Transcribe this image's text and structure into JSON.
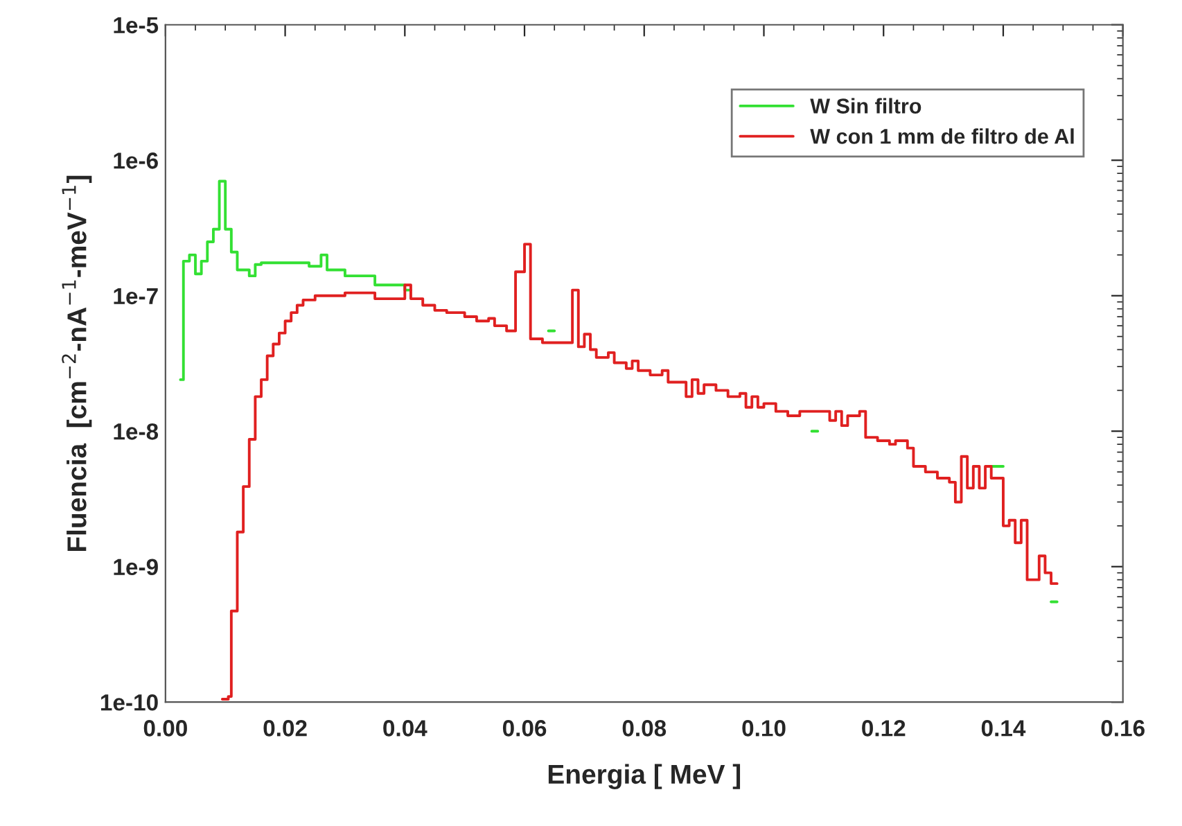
{
  "chart_data": {
    "type": "step",
    "xlabel": "Energia [ MeV ]",
    "ylabel": "Fluencia  [cm$^{−2}$-nA$^{−1}$-meV$^{−1}$]",
    "log": "y",
    "grid": false,
    "legend": "top right",
    "xlim": [
      0.0,
      0.16
    ],
    "xticks": [
      {
        "value": 0.0,
        "label": "0.00"
      },
      {
        "value": 0.02,
        "label": "0.02"
      },
      {
        "value": 0.04,
        "label": "0.04"
      },
      {
        "value": 0.06,
        "label": "0.06"
      },
      {
        "value": 0.08,
        "label": "0.08"
      },
      {
        "value": 0.1,
        "label": "0.10"
      },
      {
        "value": 0.12,
        "label": "0.12"
      },
      {
        "value": 0.14,
        "label": "0.14"
      },
      {
        "value": 0.16,
        "label": "0.16"
      }
    ],
    "ylim": [
      1e-10,
      1e-05
    ],
    "yticks": [
      {
        "value": 1e-10,
        "label": "1e-10"
      },
      {
        "value": 1e-09,
        "label": "1e-9"
      },
      {
        "value": 1e-08,
        "label": "1e-8"
      },
      {
        "value": 1e-07,
        "label": "1e-7"
      },
      {
        "value": 1e-06,
        "label": "1e-6"
      },
      {
        "value": 1e-05,
        "label": "1e-5"
      }
    ],
    "series": [
      {
        "name": "W Sin filtro",
        "color": "#33e033",
        "x": [
          0.0025,
          0.003,
          0.004,
          0.005,
          0.006,
          0.007,
          0.008,
          0.009,
          0.01,
          0.011,
          0.012,
          0.014,
          0.015,
          0.016,
          0.024,
          0.026,
          0.027,
          0.03,
          0.035,
          0.04,
          0.041,
          0.043,
          0.045,
          0.047,
          0.05,
          0.052,
          0.054,
          0.055,
          0.057,
          0.0585,
          0.06,
          0.061,
          0.063,
          0.064,
          0.065,
          0.068,
          0.069,
          0.07,
          0.071,
          0.072,
          0.074,
          0.075,
          0.077,
          0.078,
          0.079,
          0.081,
          0.083,
          0.084,
          0.086,
          0.087,
          0.088,
          0.089,
          0.09,
          0.092,
          0.094,
          0.096,
          0.097,
          0.098,
          0.099,
          0.1,
          0.102,
          0.104,
          0.106,
          0.108,
          0.109,
          0.111,
          0.112,
          0.113,
          0.114,
          0.116,
          0.117,
          0.119,
          0.121,
          0.122,
          0.124,
          0.125,
          0.127,
          0.129,
          0.131,
          0.132,
          0.133,
          0.134,
          0.135,
          0.136,
          0.137,
          0.138,
          0.14,
          0.141,
          0.142,
          0.143,
          0.144,
          0.146,
          0.147,
          0.148,
          0.149
        ],
        "values": [
          2.4e-08,
          1.8e-07,
          2e-07,
          1.45e-07,
          1.8e-07,
          2.5e-07,
          3.1e-07,
          7e-07,
          3.1e-07,
          2.1e-07,
          1.55e-07,
          1.4e-07,
          1.7e-07,
          1.75e-07,
          1.65e-07,
          2e-07,
          1.55e-07,
          1.4e-07,
          1.2e-07,
          1.1e-07,
          null,
          null,
          null,
          null,
          null,
          null,
          null,
          null,
          null,
          null,
          null,
          null,
          null,
          5.5e-08,
          null,
          null,
          null,
          null,
          null,
          null,
          null,
          null,
          null,
          null,
          null,
          null,
          null,
          null,
          null,
          null,
          null,
          null,
          null,
          null,
          null,
          null,
          null,
          null,
          null,
          null,
          null,
          null,
          null,
          1e-08,
          null,
          null,
          null,
          null,
          null,
          null,
          null,
          null,
          null,
          null,
          null,
          null,
          null,
          null,
          null,
          null,
          null,
          null,
          null,
          null,
          null,
          5.5e-09,
          null,
          null,
          null,
          null,
          null,
          null,
          null,
          5.5e-10,
          5.5e-10
        ]
      },
      {
        "name": "W con 1 mm de filtro de Al",
        "color": "#e02020",
        "x": [
          0.0095,
          0.0105,
          0.011,
          0.012,
          0.013,
          0.014,
          0.015,
          0.016,
          0.017,
          0.018,
          0.019,
          0.02,
          0.021,
          0.022,
          0.023,
          0.025,
          0.03,
          0.035,
          0.04,
          0.041,
          0.043,
          0.045,
          0.047,
          0.05,
          0.052,
          0.054,
          0.055,
          0.057,
          0.0585,
          0.06,
          0.061,
          0.063,
          0.068,
          0.069,
          0.07,
          0.071,
          0.072,
          0.074,
          0.075,
          0.077,
          0.078,
          0.079,
          0.081,
          0.083,
          0.084,
          0.086,
          0.087,
          0.088,
          0.089,
          0.09,
          0.092,
          0.094,
          0.096,
          0.097,
          0.098,
          0.099,
          0.1,
          0.102,
          0.104,
          0.106,
          0.111,
          0.112,
          0.113,
          0.114,
          0.116,
          0.117,
          0.119,
          0.121,
          0.122,
          0.124,
          0.125,
          0.127,
          0.129,
          0.131,
          0.132,
          0.133,
          0.134,
          0.135,
          0.136,
          0.137,
          0.138,
          0.14,
          0.141,
          0.142,
          0.143,
          0.144,
          0.146,
          0.147,
          0.148,
          0.149
        ],
        "values": [
          1.05e-10,
          1.1e-10,
          4.7e-10,
          1.8e-09,
          3.9e-09,
          8.7e-09,
          1.8e-08,
          2.4e-08,
          3.6e-08,
          4.4e-08,
          5.3e-08,
          6.5e-08,
          7.5e-08,
          8.5e-08,
          9.3e-08,
          1e-07,
          1.05e-07,
          9.5e-08,
          1.2e-07,
          9.5e-08,
          8.5e-08,
          7.8e-08,
          7.5e-08,
          7e-08,
          6.5e-08,
          6.8e-08,
          6e-08,
          5.5e-08,
          1.5e-07,
          2.4e-07,
          4.8e-08,
          4.5e-08,
          1.1e-07,
          4.2e-08,
          5.2e-08,
          4e-08,
          3.5e-08,
          3.8e-08,
          3.2e-08,
          2.9e-08,
          3.3e-08,
          2.8e-08,
          2.6e-08,
          2.8e-08,
          2.3e-08,
          2.3e-08,
          1.8e-08,
          2.4e-08,
          1.9e-08,
          2.2e-08,
          2e-08,
          1.8e-08,
          1.9e-08,
          1.5e-08,
          1.8e-08,
          1.5e-08,
          1.6e-08,
          1.4e-08,
          1.3e-08,
          1.4e-08,
          1.2e-08,
          1.4e-08,
          1.1e-08,
          1.3e-08,
          1.4e-08,
          9e-09,
          8.5e-09,
          8e-09,
          8.5e-09,
          7.5e-09,
          5.5e-09,
          5e-09,
          4.5e-09,
          4.2e-09,
          3e-09,
          6.5e-09,
          3.8e-09,
          5.5e-09,
          3.8e-09,
          5.5e-09,
          4.5e-09,
          2e-09,
          2.2e-09,
          1.5e-09,
          2.2e-09,
          8e-10,
          1.2e-09,
          9e-10,
          7.5e-10,
          7.5e-10
        ]
      }
    ]
  }
}
